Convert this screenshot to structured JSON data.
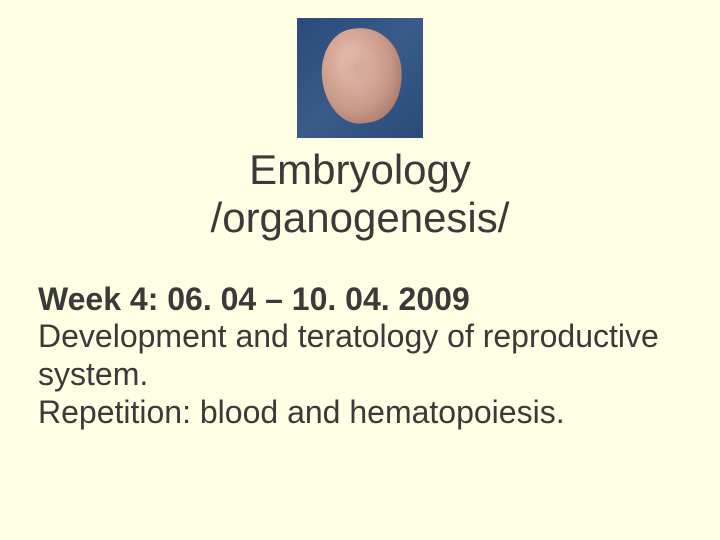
{
  "slide": {
    "background_color": "#ffffe5",
    "text_color": "#3a3a3a",
    "title_fontsize": 42,
    "body_fontsize": 32,
    "image": {
      "name": "embryo-photo",
      "width": 126,
      "height": 120,
      "background_gradient": [
        "#2a4a7a",
        "#3a5a8a"
      ],
      "subject_colors": [
        "#e8c8b8",
        "#d8a898",
        "#c89888",
        "#a87868"
      ]
    },
    "title_line1": "Embryology",
    "title_line2": "/organogenesis/",
    "week_label": "Week  4: 06. 04 – 10. 04. 2009",
    "body_line1": "Development and teratology of reproductive",
    "body_line2": "system.",
    "body_line3": "Repetition: blood and hematopoiesis."
  }
}
